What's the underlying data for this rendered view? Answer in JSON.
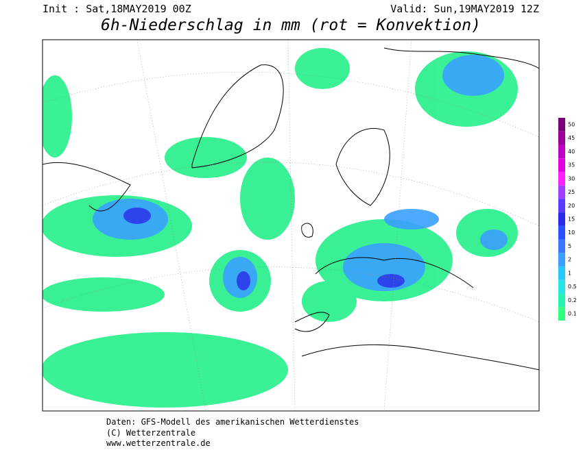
{
  "header": {
    "init": "Init : Sat,18MAY2019 00Z",
    "valid": "Valid: Sun,19MAY2019 12Z",
    "title": "6h-Niederschlag in mm (rot = Konvektion)"
  },
  "legend": {
    "labels": [
      "50",
      "45",
      "40",
      "35",
      "30",
      "25",
      "20",
      "15",
      "10",
      "5",
      "2",
      "1",
      "0.5",
      "0.2",
      "0.1"
    ],
    "colors": [
      "#7a0078",
      "#9a009a",
      "#c000c0",
      "#e000e0",
      "#ff20ff",
      "#a040ff",
      "#5a3cff",
      "#2a2ae8",
      "#2850ff",
      "#3a78ff",
      "#3aa0ff",
      "#28c8ff",
      "#28e4e4",
      "#28f0b0",
      "#30ff80"
    ]
  },
  "footer": {
    "lines": [
      "Daten: GFS-Modell des amerikanischen Wetterdienstes",
      "(C) Wetterzentrale",
      "www.wetterzentrale.de"
    ]
  }
}
